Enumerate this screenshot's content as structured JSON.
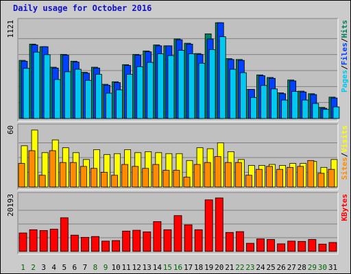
{
  "chart_data": {
    "type": "bar",
    "title": "Daily usage for October 2016",
    "categories": [
      "1",
      "2",
      "3",
      "4",
      "5",
      "6",
      "7",
      "8",
      "9",
      "10",
      "11",
      "12",
      "13",
      "14",
      "15",
      "16",
      "17",
      "18",
      "19",
      "20",
      "21",
      "22",
      "23",
      "24",
      "25",
      "26",
      "27",
      "28",
      "29",
      "30",
      "31"
    ],
    "weekend_days": [
      "1",
      "2",
      "8",
      "9",
      "15",
      "16",
      "22",
      "23",
      "29",
      "30"
    ],
    "colors": {
      "pages": "#00c8f0",
      "files": "#0040ff",
      "hits": "#00805c",
      "sites": "#ff8c00",
      "visits": "#ffff00",
      "kbytes": "#ff0000",
      "weekend_label": "#006400",
      "weekday_label": "#000000",
      "title": "#1010c8",
      "panel_bg": "#c0c0c0",
      "frame_bg": "#cbcbcb"
    },
    "panels": [
      {
        "id": "hits-panel",
        "ymax_label": "1121",
        "ylim": [
          0,
          1121
        ],
        "legend": [
          {
            "name": "Pages",
            "color": "#00c8f0"
          },
          {
            "name": "/",
            "color": "#000000"
          },
          {
            "name": "Files",
            "color": "#0040ff"
          },
          {
            "name": "/",
            "color": "#000000"
          },
          {
            "name": "Hits",
            "color": "#00805c"
          }
        ],
        "series": [
          {
            "name": "Hits",
            "values": [
              680,
              870,
              840,
              600,
              750,
              670,
              540,
              600,
              400,
              430,
              630,
              750,
              790,
              860,
              850,
              930,
              880,
              760,
              990,
              1120,
              700,
              690,
              340,
              510,
              480,
              300,
              450,
              320,
              290,
              130,
              250
            ]
          },
          {
            "name": "Files",
            "values": [
              670,
              860,
              840,
              590,
              740,
              660,
              530,
              590,
              390,
              420,
              620,
              740,
              780,
              850,
              850,
              920,
              870,
              750,
              930,
              1120,
              690,
              680,
              340,
              500,
              470,
              290,
              440,
              310,
              280,
              120,
              240
            ]
          },
          {
            "name": "Pages",
            "values": [
              650,
              840,
              810,
              520,
              610,
              640,
              510,
              580,
              360,
              400,
              580,
              670,
              720,
              820,
              800,
              860,
              820,
              710,
              870,
              1020,
              640,
              600,
              310,
              450,
              410,
              280,
              380,
              280,
              240,
              170,
              200
            ]
          }
        ]
      },
      {
        "id": "visits-panel",
        "ymax_label": "60",
        "ylim": [
          0,
          60
        ],
        "legend": [
          {
            "name": "Sites",
            "color": "#ff8c00"
          },
          {
            "name": "/",
            "color": "#000000"
          },
          {
            "name": "Visits",
            "color": "#ffff00"
          }
        ],
        "series": [
          {
            "name": "Visits",
            "values": [
              42,
              58,
              35,
              48,
              40,
              35,
              28,
              38,
              33,
              34,
              38,
              35,
              36,
              35,
              34,
              34,
              27,
              40,
              39,
              45,
              36,
              28,
              22,
              22,
              23,
              22,
              24,
              24,
              26,
              20,
              28
            ]
          },
          {
            "name": "Sites",
            "values": [
              24,
              37,
              12,
              37,
              25,
              25,
              21,
              19,
              15,
              12,
              23,
              21,
              19,
              23,
              17,
              17,
              10,
              23,
              25,
              31,
              25,
              25,
              12,
              18,
              21,
              18,
              20,
              21,
              27,
              14,
              18
            ]
          }
        ]
      },
      {
        "id": "kbytes-panel",
        "ymax_label": "20193",
        "ylim": [
          0,
          20193
        ],
        "legend": [
          {
            "name": "KBytes",
            "color": "#ff0000"
          }
        ],
        "series": [
          {
            "name": "KBytes",
            "values": [
              6800,
              8000,
              7700,
              8200,
              12400,
              6000,
              5200,
              5500,
              3800,
              4000,
              7500,
              7800,
              7200,
              11000,
              8000,
              13200,
              9800,
              8000,
              19000,
              19700,
              7000,
              7300,
              3000,
              4600,
              4400,
              2800,
              3800,
              3700,
              4400,
              2700,
              3300
            ]
          }
        ]
      }
    ]
  }
}
